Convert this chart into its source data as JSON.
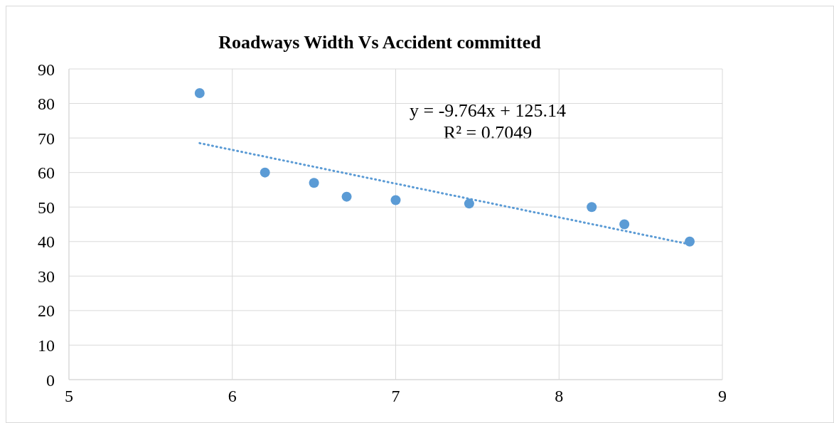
{
  "chart_data": {
    "type": "scatter",
    "title": "Roadways Width Vs Accident committed",
    "x": [
      5.8,
      6.2,
      6.5,
      6.7,
      7.0,
      7.45,
      8.2,
      8.4,
      8.8
    ],
    "series": [
      {
        "color": "#5b9bd5",
        "marker": "circle",
        "values": [
          83,
          60,
          57,
          53,
          52,
          51,
          50,
          45,
          40
        ]
      },
      {
        "type": "line",
        "color": "#5b9bd5",
        "x": [
          5.8,
          8.8
        ],
        "values": [
          68.5,
          39.2
        ],
        "marker": "none",
        "line_style": "dotted"
      }
    ],
    "xlim": [
      5,
      9
    ],
    "xticks": [
      5,
      6,
      7,
      8,
      9
    ],
    "ylim": [
      0,
      90
    ],
    "yticks": [
      0,
      10,
      20,
      30,
      40,
      50,
      60,
      70,
      80,
      90
    ],
    "grid": true,
    "legend": false,
    "annotations": [
      "y = -9.764x + 125.14",
      "R² = 0.7049"
    ]
  }
}
